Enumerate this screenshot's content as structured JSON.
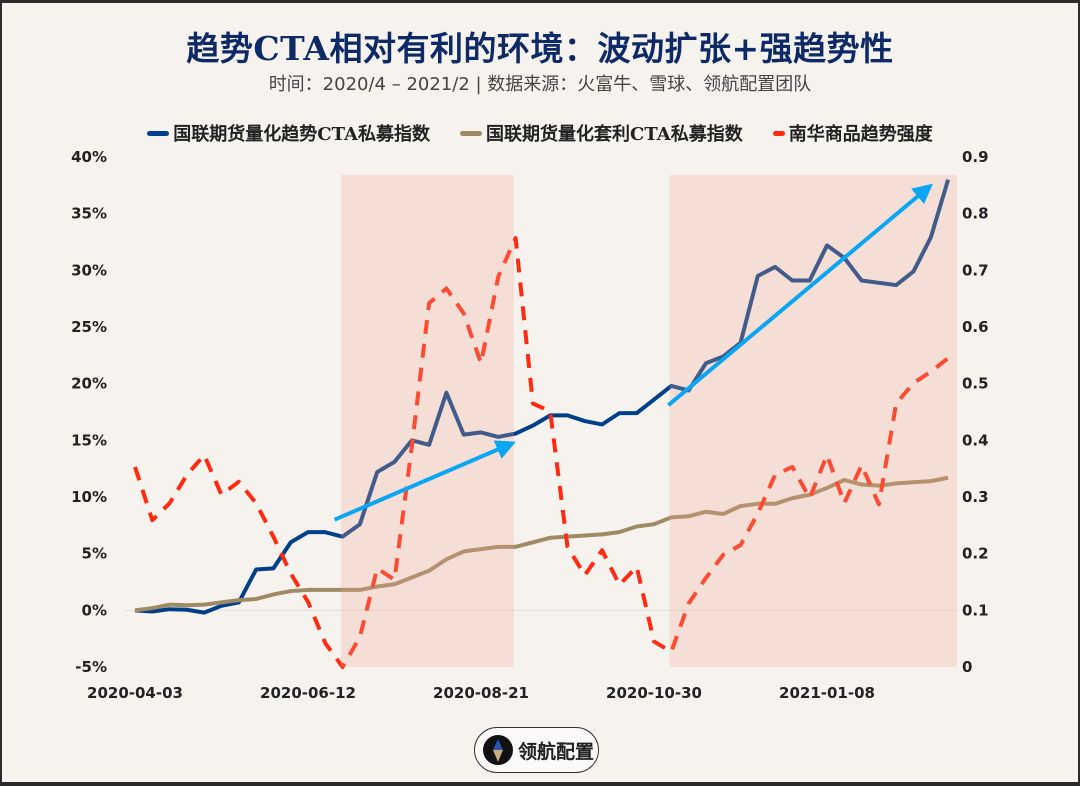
{
  "title": "趋势CTA相对有利的环境：波动扩张+强趋势性",
  "subtitle": "时间：2020/4 – 2021/2 | 数据来源：火富牛、雪球、领航配置团队",
  "logo": {
    "text": "领航配置"
  },
  "colors": {
    "background": "#f6f3ef",
    "shade": "#f4c9bd",
    "trend": "#003f8a",
    "arb": "#a08a64",
    "nanhua": "#ff2a10",
    "arrow": "#0aa6f2",
    "title": "#0d2a66"
  },
  "chart_data": {
    "type": "line",
    "title": "趋势CTA相对有利的环境：波动扩张+强趋势性",
    "x": [
      "2020-04-03",
      "2020-04-10",
      "2020-04-17",
      "2020-04-24",
      "2020-05-01",
      "2020-05-08",
      "2020-05-15",
      "2020-05-22",
      "2020-05-29",
      "2020-06-05",
      "2020-06-12",
      "2020-06-19",
      "2020-06-26",
      "2020-07-03",
      "2020-07-10",
      "2020-07-17",
      "2020-07-24",
      "2020-07-31",
      "2020-08-07",
      "2020-08-14",
      "2020-08-21",
      "2020-08-28",
      "2020-09-04",
      "2020-09-11",
      "2020-09-18",
      "2020-09-25",
      "2020-10-02",
      "2020-10-09",
      "2020-10-16",
      "2020-10-23",
      "2020-10-30",
      "2020-11-06",
      "2020-11-13",
      "2020-11-20",
      "2020-11-27",
      "2020-12-04",
      "2020-12-11",
      "2020-12-18",
      "2020-12-25",
      "2021-01-01",
      "2021-01-08",
      "2021-01-15",
      "2021-01-22",
      "2021-01-29",
      "2021-02-05",
      "2021-02-12",
      "2021-02-19",
      "2021-02-26"
    ],
    "x_ticks": [
      "2020-04-03",
      "2020-06-12",
      "2020-08-21",
      "2020-10-30",
      "2021-01-08"
    ],
    "y_left": {
      "ylim": [
        -5,
        40
      ],
      "ticks": [
        -5,
        0,
        5,
        10,
        15,
        20,
        25,
        30,
        35,
        40
      ],
      "unit": "%"
    },
    "y_right": {
      "ylim": [
        0,
        0.9
      ],
      "ticks": [
        0,
        0.1,
        0.2,
        0.3,
        0.4,
        0.5,
        0.6,
        0.7,
        0.8,
        0.9
      ]
    },
    "legend_position": "top",
    "grid": false,
    "series": [
      {
        "name": "国联期货量化趋势CTA私募指数",
        "axis": "left",
        "style": "solid",
        "color": "#003f8a",
        "values": [
          0,
          -0.1,
          0.1,
          0.05,
          -0.2,
          0.4,
          0.7,
          3.6,
          3.7,
          6.0,
          6.9,
          6.9,
          6.5,
          7.6,
          12.2,
          13.1,
          15.0,
          14.6,
          19.2,
          15.5,
          15.7,
          15.3,
          15.6,
          16.3,
          17.2,
          17.2,
          16.7,
          16.4,
          17.4,
          17.4,
          18.6,
          19.8,
          19.4,
          21.8,
          22.4,
          23.6,
          29.5,
          30.3,
          29.1,
          29.1,
          32.2,
          31.1,
          29.1,
          28.9,
          28.7,
          29.9,
          32.9,
          38.0
        ]
      },
      {
        "name": "国联期货量化套利CTA私募指数",
        "axis": "left",
        "style": "solid",
        "color": "#a08a64",
        "values": [
          0,
          0.2,
          0.5,
          0.45,
          0.5,
          0.7,
          0.9,
          1.0,
          1.4,
          1.7,
          1.8,
          1.8,
          1.8,
          1.8,
          2.1,
          2.3,
          2.9,
          3.5,
          4.5,
          5.2,
          5.4,
          5.6,
          5.6,
          6.0,
          6.4,
          6.5,
          6.6,
          6.7,
          6.9,
          7.4,
          7.6,
          8.2,
          8.3,
          8.7,
          8.5,
          9.2,
          9.4,
          9.4,
          9.9,
          10.2,
          10.8,
          11.5,
          11.1,
          11.0,
          11.2,
          11.3,
          11.4,
          11.7
        ]
      },
      {
        "name": "南华商品趋势强度",
        "axis": "right",
        "style": "dashed",
        "color": "#ff2a10",
        "values": [
          0.353,
          0.259,
          0.289,
          0.339,
          0.374,
          0.304,
          0.327,
          0.289,
          0.23,
          0.165,
          0.115,
          0.042,
          0.0,
          0.053,
          0.174,
          0.154,
          0.389,
          0.642,
          0.668,
          0.624,
          0.536,
          0.689,
          0.757,
          0.465,
          0.451,
          0.212,
          0.162,
          0.206,
          0.145,
          0.177,
          0.045,
          0.027,
          0.112,
          0.157,
          0.198,
          0.215,
          0.271,
          0.339,
          0.353,
          0.298,
          0.374,
          0.289,
          0.356,
          0.287,
          0.465,
          0.501,
          0.521,
          0.545
        ]
      }
    ],
    "shaded_periods": [
      {
        "start": "2020-06-26",
        "end": "2020-09-04"
      },
      {
        "start": "2020-11-06",
        "end": "2021-02-26"
      }
    ],
    "annotations": [
      {
        "type": "arrow",
        "from": {
          "x": "2020-06-26",
          "y": 8.0
        },
        "to": {
          "x": "2020-09-04",
          "y": 14.6
        },
        "axis": "left"
      },
      {
        "type": "arrow",
        "from": {
          "x": "2020-11-06",
          "y": 18.1
        },
        "to": {
          "x": "2021-02-19",
          "y": 37.2
        },
        "axis": "left"
      }
    ]
  }
}
